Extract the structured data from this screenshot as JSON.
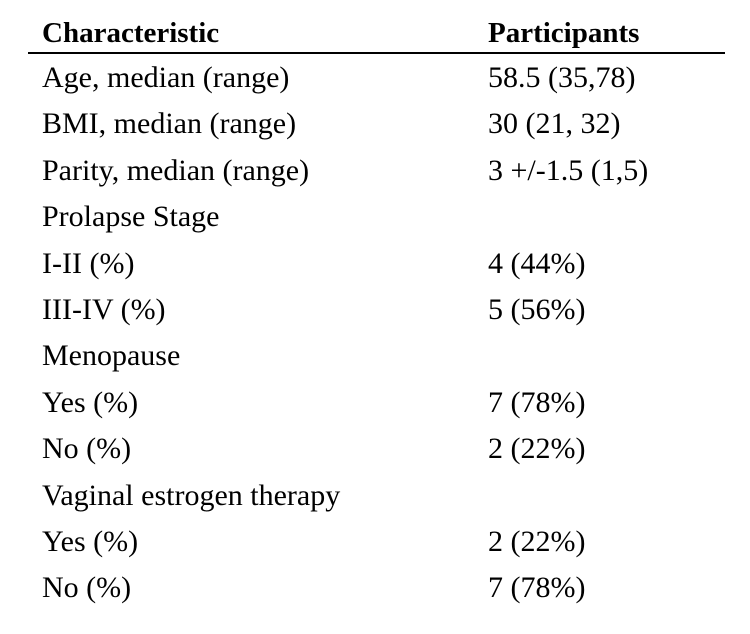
{
  "table": {
    "headers": [
      "Characteristic",
      "Participants"
    ],
    "rows": [
      {
        "label": "Age, median (range)",
        "value": "58.5 (35,78)"
      },
      {
        "label": "BMI, median (range)",
        "value": "30 (21, 32)"
      },
      {
        "label": "Parity, median (range)",
        "value": "3 +/-1.5 (1,5)"
      },
      {
        "label": "Prolapse Stage",
        "value": ""
      },
      {
        "label": "I-II (%)",
        "value": "4 (44%)"
      },
      {
        "label": "III-IV (%)",
        "value": "5 (56%)"
      },
      {
        "label": "Menopause",
        "value": ""
      },
      {
        "label": "Yes (%)",
        "value": "7 (78%)"
      },
      {
        "label": "No (%)",
        "value": "2 (22%)"
      },
      {
        "label": "Vaginal estrogen therapy",
        "value": ""
      },
      {
        "label": "Yes (%)",
        "value": "2 (22%)"
      },
      {
        "label": "No (%)",
        "value": "7 (78%)"
      }
    ]
  }
}
